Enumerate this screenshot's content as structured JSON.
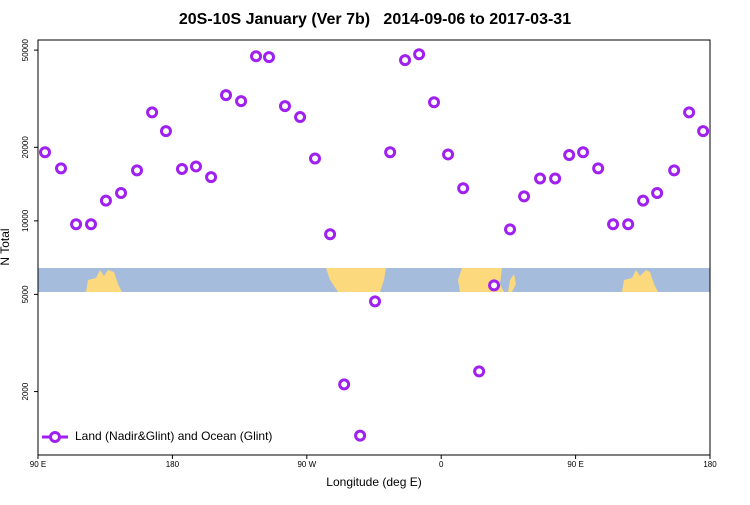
{
  "chart_data": {
    "type": "scatter",
    "title": "20S-10S January (Ver 7b)   2014-09-06 to 2017-03-31",
    "x_label": "Longitude (deg E)",
    "y_label": "N Total",
    "log_y": true,
    "legend": "bottom-left",
    "xlim": [
      90,
      540
    ],
    "ylim": [
      1100,
      55000
    ],
    "xticks": [
      {
        "value": 90,
        "label": "90 E"
      },
      180,
      {
        "value": 270,
        "label": "90 W"
      },
      {
        "value": 360,
        "label": "0"
      },
      {
        "value": 450,
        "label": "90 E"
      },
      {
        "value": 540,
        "label": "180"
      }
    ],
    "yticks": [
      2000,
      5000,
      10000,
      20000,
      50000
    ],
    "series": [
      {
        "name": "Land (Nadir&Glint) and Ocean (Glint)",
        "color": "#a020f0",
        "x": [
          94.7,
          105.4,
          115.5,
          125.5,
          135.5,
          145.6,
          156.3,
          166.4,
          175.7,
          186.4,
          195.8,
          205.9,
          215.9,
          226,
          236,
          244.7,
          255.4,
          265.5,
          275.5,
          285.6,
          295,
          305.7,
          315.7,
          325.8,
          335.8,
          345.2,
          355.2,
          364.6,
          374.7,
          385.4,
          395.4,
          406.1,
          415.5,
          426.2,
          436.3,
          445.7,
          455,
          465.1,
          475.1,
          485.2,
          495.2,
          504.6,
          516,
          526,
          535.4
        ],
        "values": [
          19100,
          16400,
          9680,
          9680,
          12100,
          13000,
          16100,
          27800,
          23300,
          16300,
          16700,
          15100,
          32700,
          30900,
          47200,
          46800,
          29500,
          26600,
          18000,
          8810,
          2140,
          1320,
          4680,
          19100,
          45500,
          48100,
          30600,
          18700,
          13600,
          2420,
          5440,
          9230,
          12600,
          14900,
          14900,
          18600,
          19100,
          16400,
          9680,
          9680,
          12100,
          13000,
          16100,
          27800,
          23300
        ]
      }
    ]
  }
}
